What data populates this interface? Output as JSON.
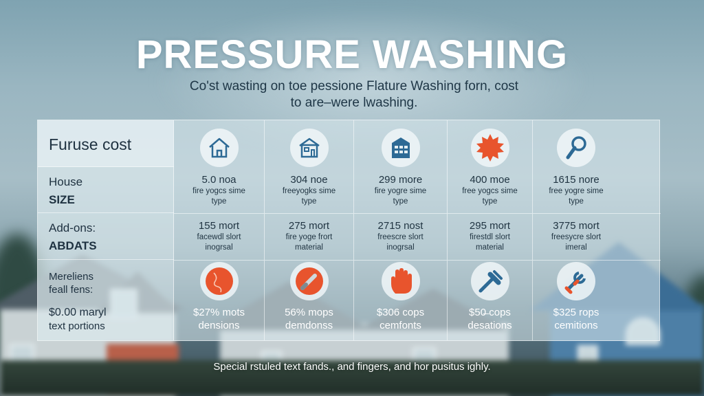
{
  "title": "PRESSURE WASHING",
  "subtitle_line1": "Co'st wasting on toe pessione Flature Washing forn, cost",
  "subtitle_line2": "to are–were lwashing.",
  "table": {
    "header_label": "Furuse cost",
    "rows": [
      {
        "line1": "House",
        "line2": "SIZE"
      },
      {
        "line1": "Add-ons:",
        "line2": "ABDATS"
      },
      {
        "line1": "Mereliens",
        "line2": "feall fens:",
        "line3": "$0.00 maryl",
        "line4": "text portions"
      }
    ],
    "columns": [
      {
        "top_icon": "house-outline-icon",
        "size_value": "5.0 noa",
        "size_sub1": "fire yogcs sime",
        "size_sub2": "type",
        "addon_value": "155 mort",
        "addon_sub1": "facewdl slort",
        "addon_sub2": "inogrsal",
        "bottom_icon": "crack-circle-icon",
        "bottom_line1": "$27% mots",
        "bottom_line2": "densions"
      },
      {
        "top_icon": "house-outline-icon",
        "size_value": "304 noe",
        "size_sub1": "freeyogks sime",
        "size_sub2": "type",
        "addon_value": "275 mort",
        "addon_sub1": "fire yoge frort",
        "addon_sub2": "material",
        "bottom_icon": "brush-circle-icon",
        "bottom_line1": "56% mops",
        "bottom_line2": "demdonss"
      },
      {
        "top_icon": "building-icon",
        "size_value": "299 more",
        "size_sub1": "fire yogre sime",
        "size_sub2": "type",
        "addon_value": "2715 nost",
        "addon_sub1": "freescre slort",
        "addon_sub2": "inogrsal",
        "bottom_icon": "hand-icon",
        "bottom_line1": "$306 cops",
        "bottom_line2": "cemfonts"
      },
      {
        "top_icon": "sun-badge-icon",
        "size_value": "400 moe",
        "size_sub1": "free yogcs sime",
        "size_sub2": "type",
        "addon_value": "295 mort",
        "addon_sub1": "firestdl slort",
        "addon_sub2": "material",
        "bottom_icon": "scraper-icon",
        "bottom_line1": "$50̶ cops",
        "bottom_line2": "desations"
      },
      {
        "top_icon": "magnifier-icon",
        "size_value": "1615 nore",
        "size_sub1": "free yogre sime",
        "size_sub2": "type",
        "addon_value": "3775 mort",
        "addon_sub1": "freesycre slort",
        "addon_sub2": "imeral",
        "bottom_icon": "wrench-icon",
        "bottom_line1": "$325 rops",
        "bottom_line2": "cemitions"
      }
    ]
  },
  "footer": "Special rstuled text fands., and fingers, and hor pusitus ighly.",
  "colors": {
    "accent_orange": "#e8542d",
    "icon_blue": "#2d6a95",
    "panel": "#d6e5ea"
  }
}
